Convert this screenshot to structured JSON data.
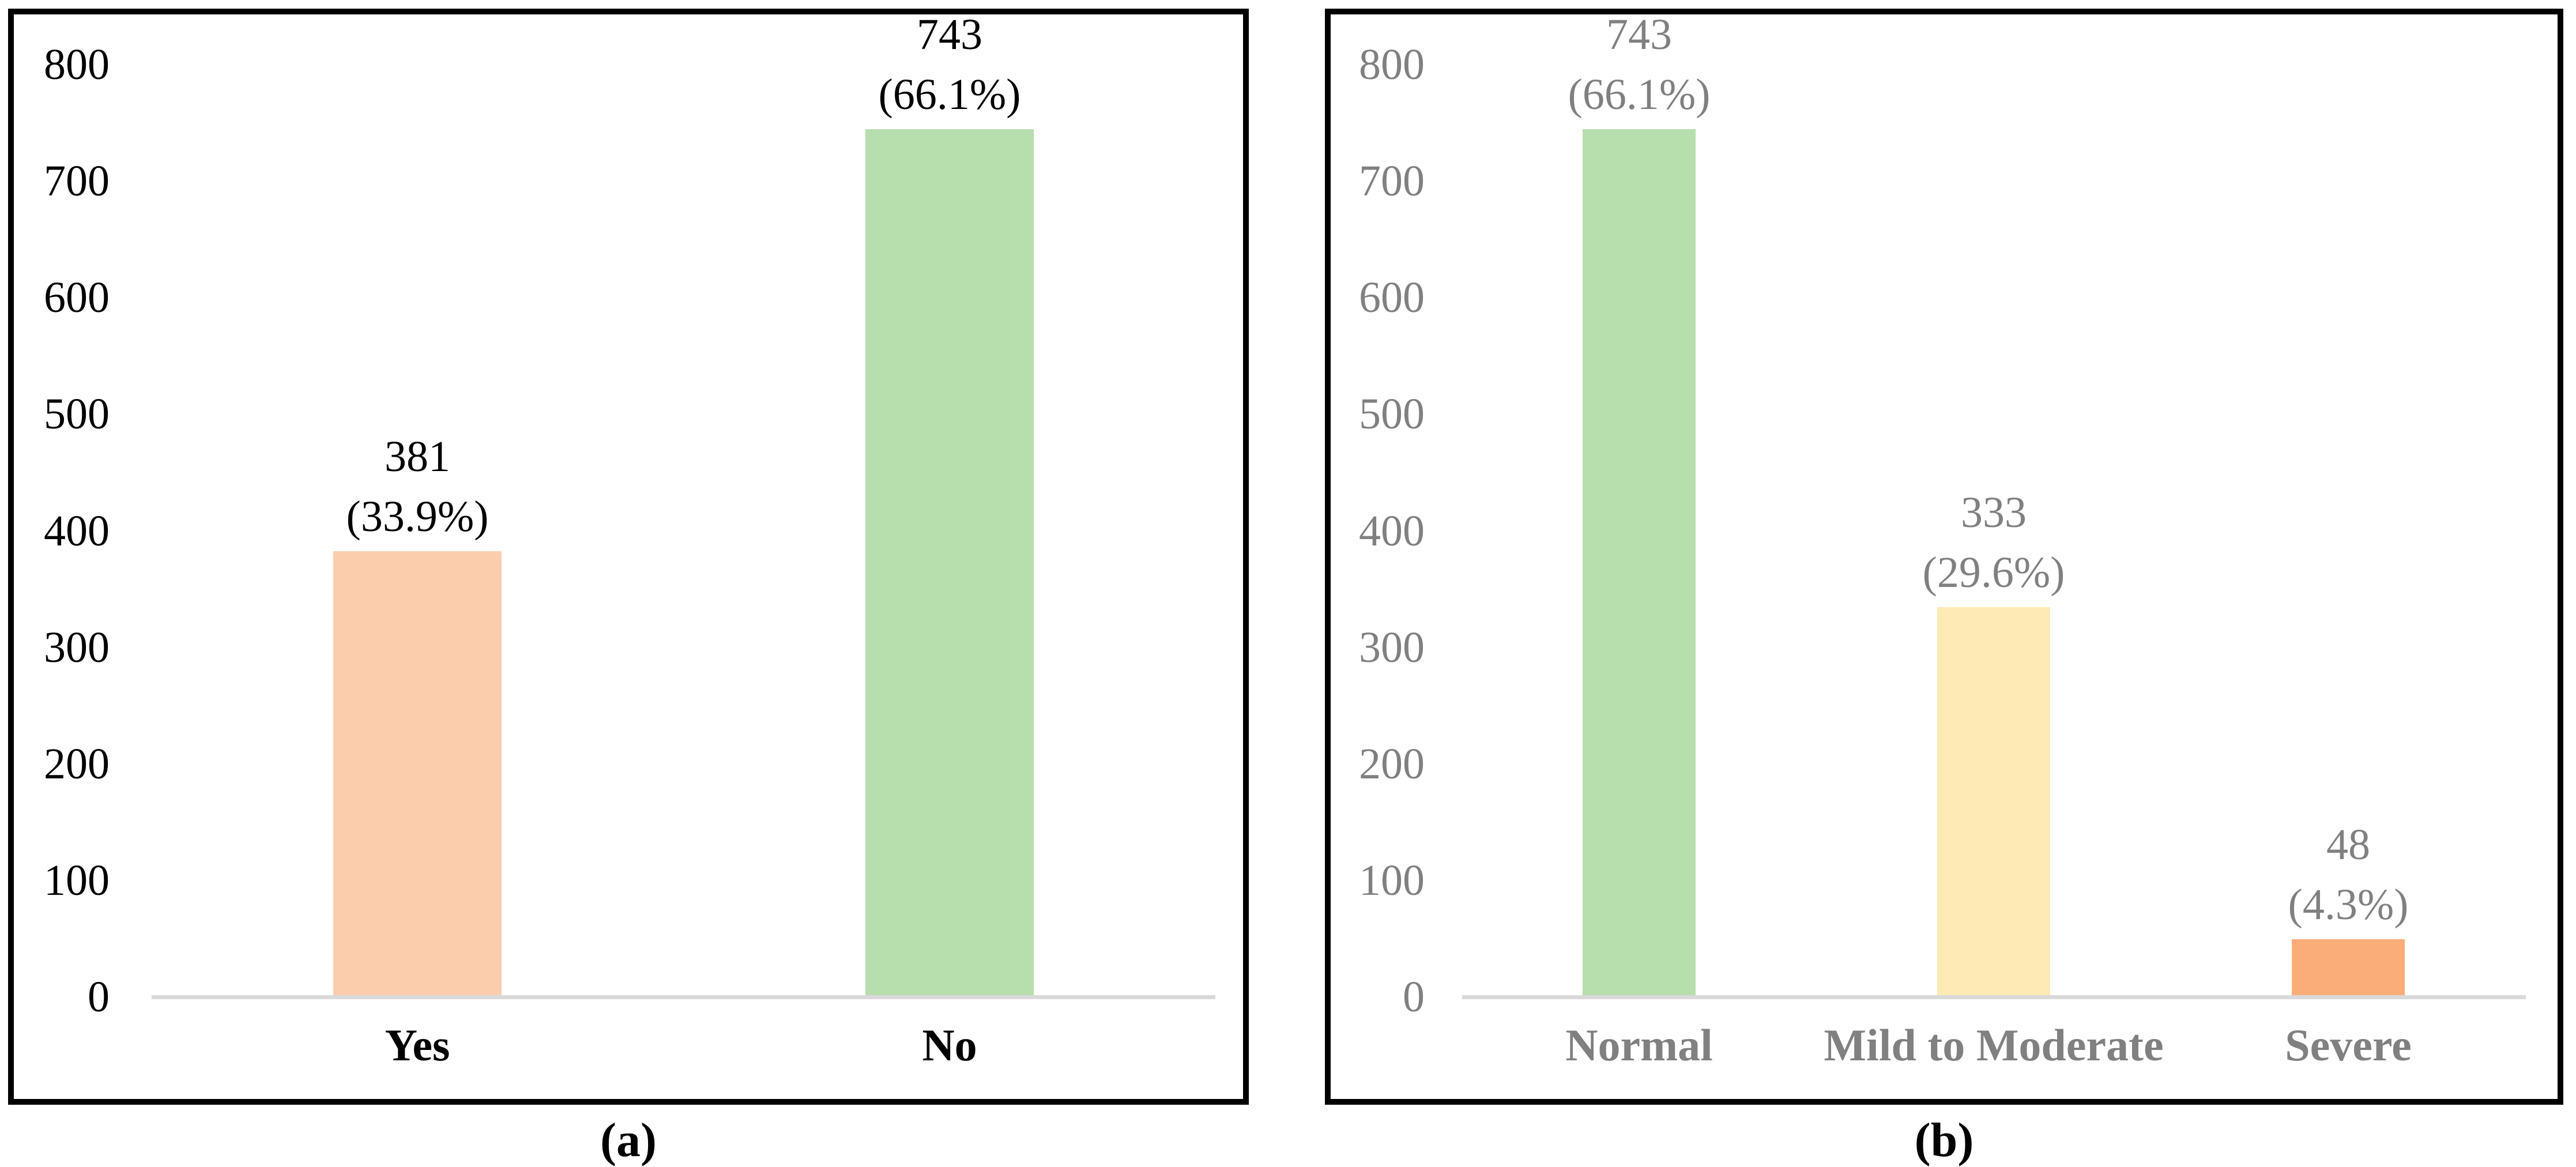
{
  "figure": {
    "background_color": "#FFFFFF",
    "panel_border_color": "#000000",
    "axis_line_color": "#D9D9D9"
  },
  "chart_data": [
    {
      "type": "bar",
      "panel": "a",
      "caption": "(a)",
      "title": "",
      "xlabel": "",
      "ylabel": "",
      "categories": [
        "Yes",
        "No"
      ],
      "values": [
        381,
        743
      ],
      "data_labels": [
        [
          "381",
          "(33.9%)"
        ],
        [
          "743",
          "(66.1%)"
        ]
      ],
      "bar_colors": [
        "#FBCDAD",
        "#B7DEAD"
      ],
      "text_color": "#000000",
      "y_ticks": [
        800,
        700,
        600,
        500,
        400,
        300,
        200,
        100,
        0
      ],
      "ylim": [
        0,
        800
      ],
      "grid": false,
      "legend": "none",
      "axis_line_color": "#D9D9D9"
    },
    {
      "type": "bar",
      "panel": "b",
      "caption": "(b)",
      "title": "",
      "xlabel": "",
      "ylabel": "",
      "categories": [
        "Normal",
        "Mild to Moderate",
        "Severe"
      ],
      "values": [
        743,
        333,
        48
      ],
      "data_labels": [
        [
          "743",
          "(66.1%)"
        ],
        [
          "333",
          "(29.6%)"
        ],
        [
          "48",
          "(4.3%)"
        ]
      ],
      "bar_colors": [
        "#B7DEAD",
        "#FEEAB4",
        "#FAAD79"
      ],
      "text_color": "#808080",
      "y_ticks": [
        800,
        700,
        600,
        500,
        400,
        300,
        200,
        100,
        0
      ],
      "ylim": [
        0,
        800
      ],
      "grid": false,
      "legend": "none",
      "axis_line_color": "#D9D9D9"
    }
  ]
}
